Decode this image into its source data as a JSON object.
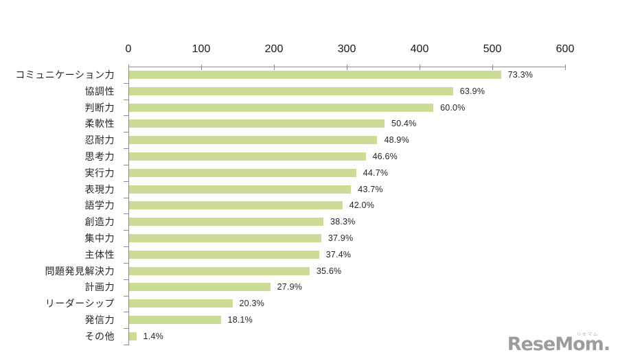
{
  "chart_data": {
    "type": "bar",
    "orientation": "horizontal",
    "title": "",
    "xlabel": "",
    "ylabel": "",
    "grid": false,
    "legend": false,
    "bar_color": "#cbdc97",
    "axis_color": "#8c8c8c",
    "x_axis": {
      "min": 0,
      "max": 600,
      "tick_interval": 100,
      "tick_labels": [
        "0",
        "100",
        "200",
        "300",
        "400",
        "500",
        "600"
      ],
      "position": "top"
    },
    "categories": [
      "コミュニケーション力",
      "協調性",
      "判断力",
      "柔軟性",
      "忍耐力",
      "思考力",
      "実行力",
      "表現力",
      "語学力",
      "創造力",
      "集中力",
      "主体性",
      "問題発見解決力",
      "計画力",
      "リーダーシップ",
      "発信力",
      "その他"
    ],
    "percent_labels": [
      "73.3%",
      "63.9%",
      "60.0%",
      "50.4%",
      "48.9%",
      "46.6%",
      "44.7%",
      "43.7%",
      "42.0%",
      "38.3%",
      "37.9%",
      "37.4%",
      "35.6%",
      "27.9%",
      "20.3%",
      "18.1%",
      "1.4%"
    ],
    "percentages": [
      73.3,
      63.9,
      60.0,
      50.4,
      48.9,
      46.6,
      44.7,
      43.7,
      42.0,
      38.3,
      37.9,
      37.4,
      35.6,
      27.9,
      20.3,
      18.1,
      1.4
    ],
    "values": [
      511,
      445,
      418,
      351,
      341,
      325,
      312,
      305,
      293,
      267,
      264,
      261,
      248,
      194,
      142,
      126,
      10
    ]
  },
  "watermark": {
    "logo_text": "ReseMom.",
    "logo_ruby": "リセマム"
  },
  "colors": {
    "background": "#ffffff",
    "bar": "#cbdc97",
    "axis": "#8c8c8c",
    "text": "#262626",
    "logo": "#9c9c9c"
  }
}
